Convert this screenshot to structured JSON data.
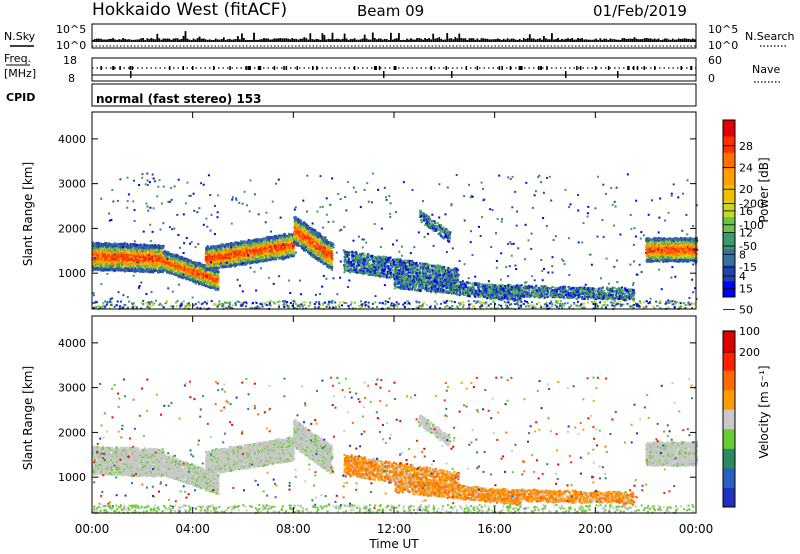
{
  "header": {
    "station": "Hokkaido West (fitACF)",
    "beam": "Beam 09",
    "date": "01/Feb/2019"
  },
  "noise_panel": {
    "left_label": "N.Sky",
    "right_label": "N.Search",
    "ticks": [
      "10^5",
      "10^0"
    ]
  },
  "freq_panel": {
    "left_label_1": "Freq.",
    "left_label_2": "[MHz]",
    "left_ticks": [
      "18",
      "8"
    ],
    "right_label": "Nave",
    "right_ticks": [
      "60",
      "0"
    ]
  },
  "cpid_panel": {
    "label": "CPID",
    "mode": "normal (fast stereo) 153"
  },
  "chart_data": [
    {
      "type": "heatmap",
      "name": "power",
      "ylabel": "Slant Range [km]",
      "xlabel": "",
      "ylim": [
        200,
        4600
      ],
      "yticks": [
        "1000",
        "2000",
        "3000",
        "4000"
      ],
      "xlim_hours": [
        0,
        24
      ],
      "colorbar": {
        "label": "Power [dB]",
        "ticks": [
          "4",
          "8",
          "12",
          "16",
          "20",
          "24",
          "28"
        ],
        "colors": [
          "#0000ff",
          "#2244aa",
          "#3a6fa0",
          "#3c9a6a",
          "#6cc24a",
          "#c8d820",
          "#f0c000",
          "#ffa000",
          "#ff7000",
          "#ff3000",
          "#e00000"
        ]
      }
    },
    {
      "type": "heatmap",
      "name": "velocity",
      "ylabel": "Slant Range [km]",
      "xlabel": "Time UT",
      "ylim": [
        200,
        4600
      ],
      "yticks": [
        "1000",
        "2000",
        "3000",
        "4000"
      ],
      "xlim_hours": [
        0,
        24
      ],
      "xticks": [
        "00:00",
        "04:00",
        "08:00",
        "12:00",
        "16:00",
        "20:00",
        "00:00"
      ],
      "colorbar": {
        "label": "Velocity [m s⁻¹]",
        "ticks": [
          "200",
          "100",
          "50",
          "15",
          "-15",
          "-50",
          "-100",
          "-200"
        ],
        "colors": [
          "#2030c0",
          "#2a60c0",
          "#2c8a60",
          "#66cc33",
          "#c8c8c8",
          "#ff9a00",
          "#ff6a00",
          "#ff2000",
          "#e00000"
        ]
      }
    }
  ]
}
